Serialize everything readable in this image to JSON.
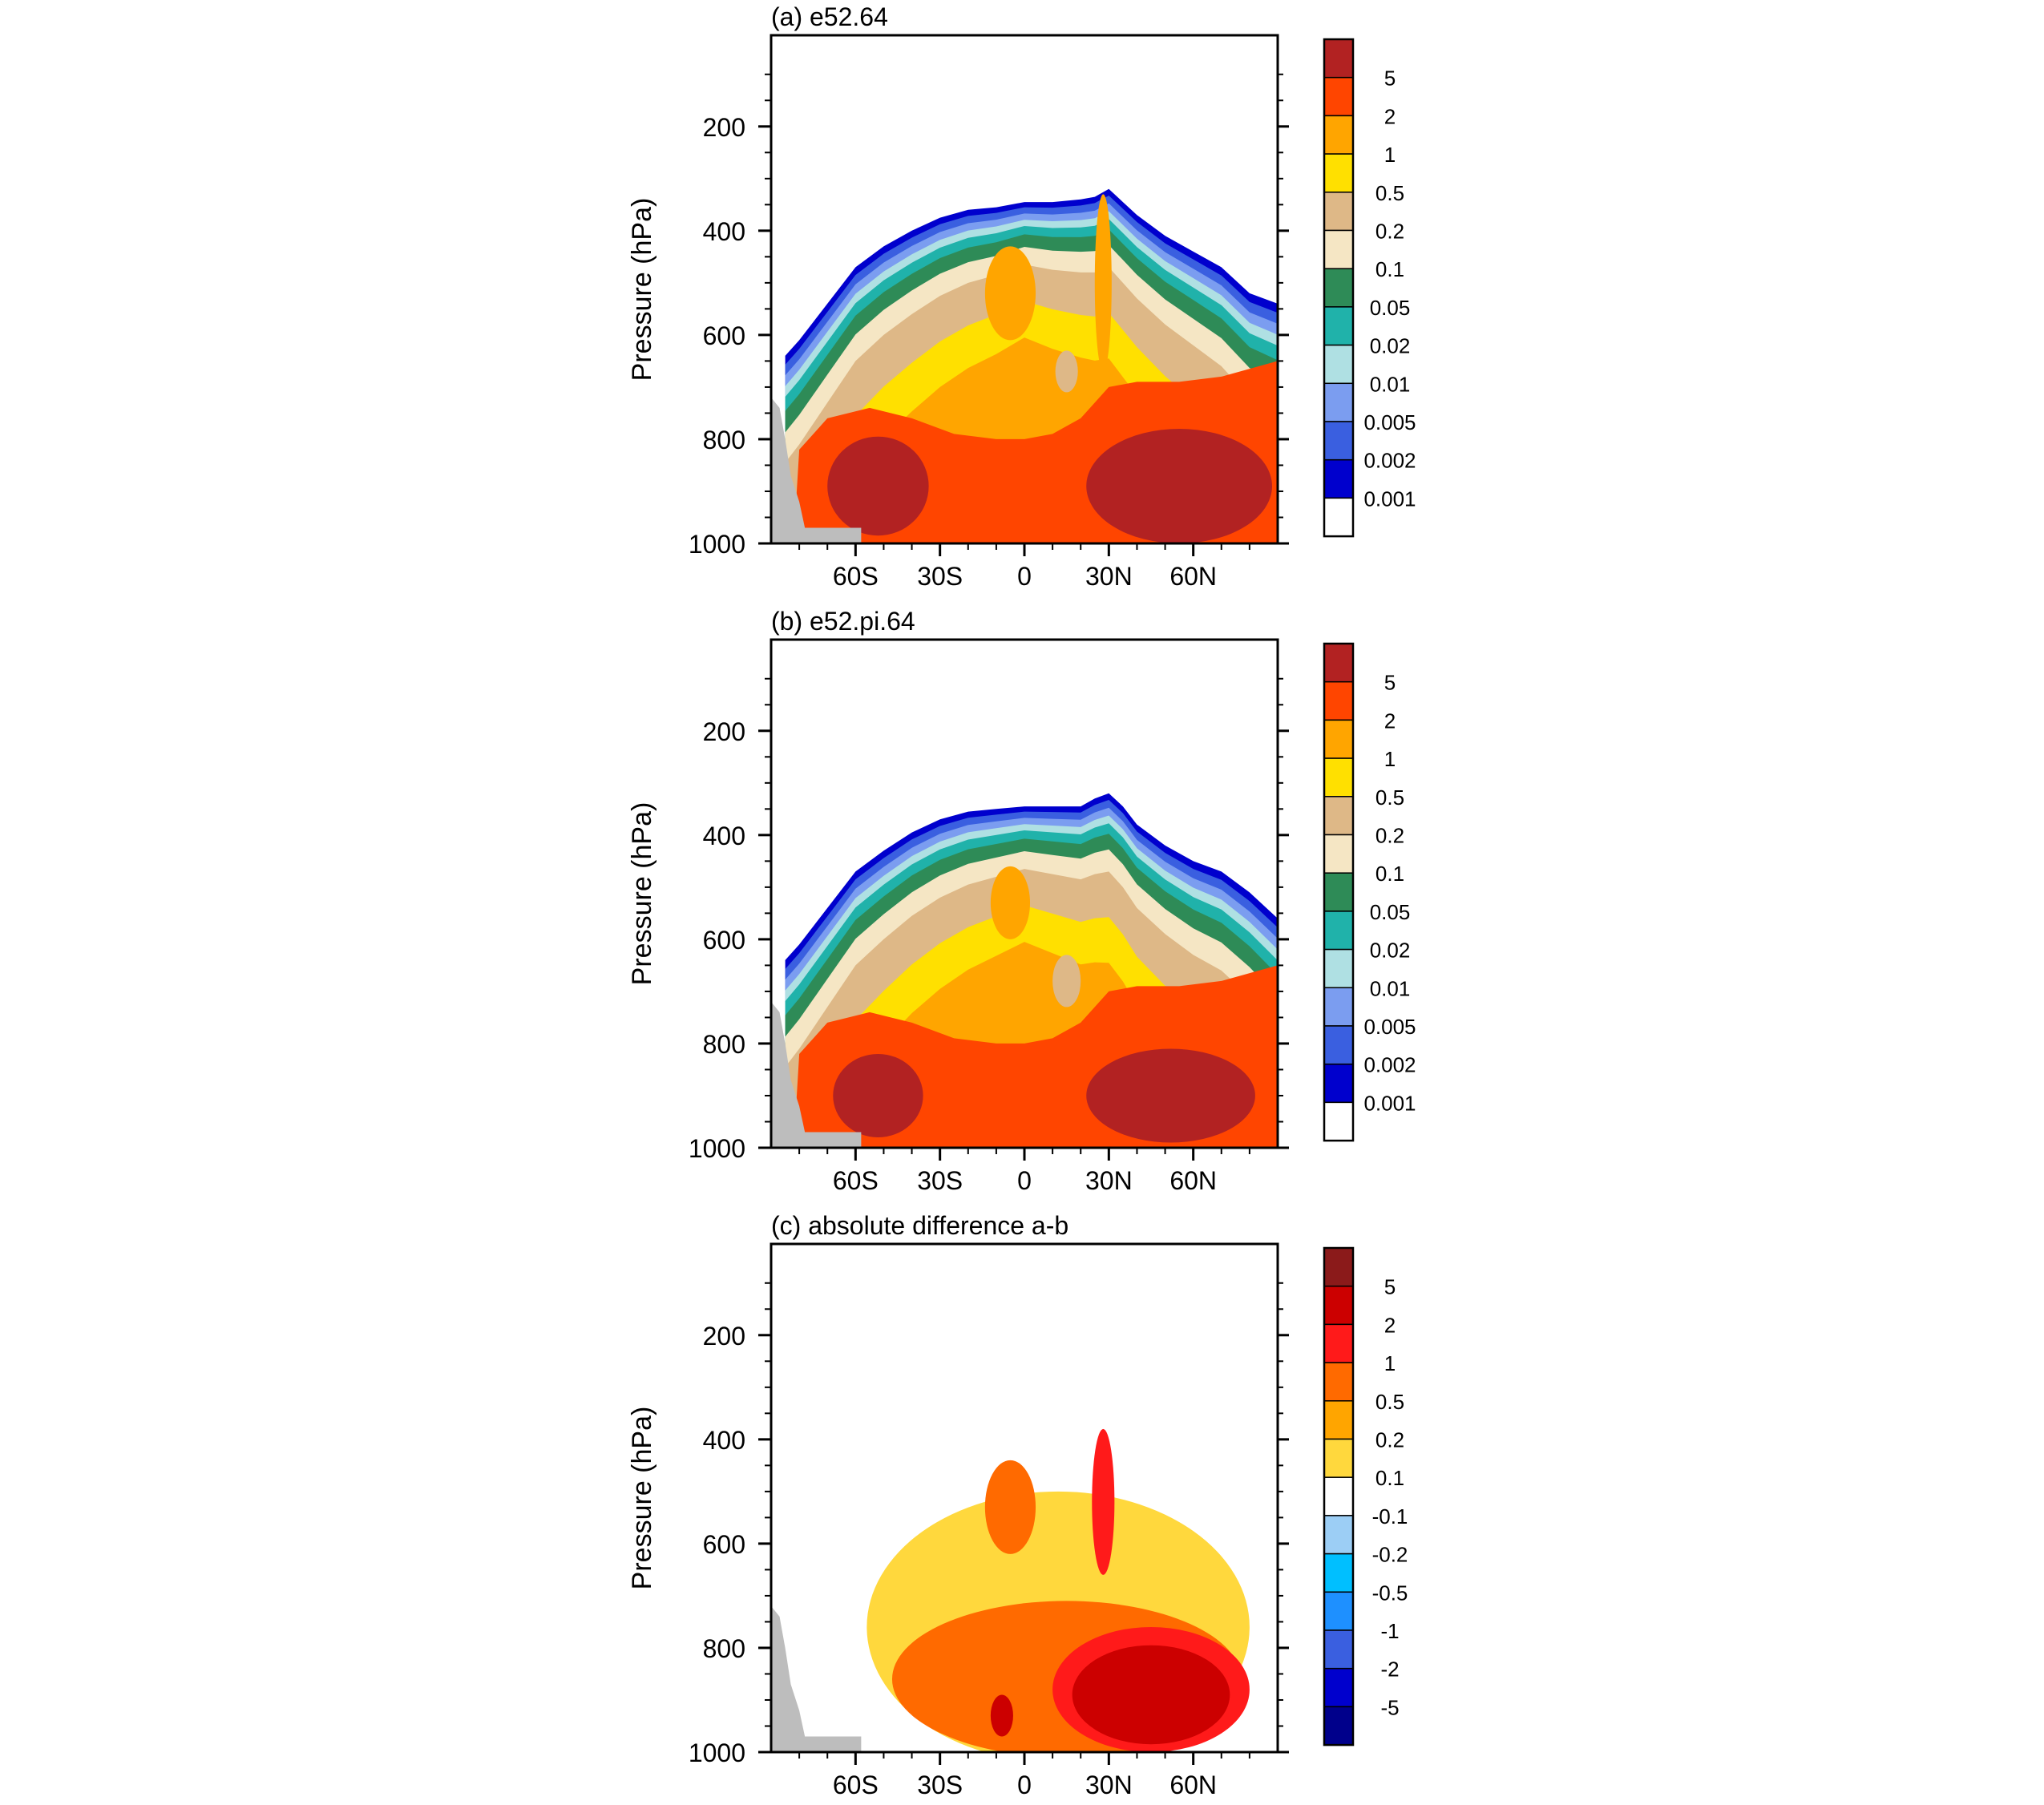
{
  "chart_data": [
    {
      "type": "heatmap",
      "title": "(a) e52.64",
      "ylabel": "Pressure (hPa)",
      "xlabel": "",
      "x_ticks": [
        "60S",
        "30S",
        "0",
        "30N",
        "60N"
      ],
      "x_tick_values": [
        -60,
        -30,
        0,
        30,
        60
      ],
      "x_range": [
        -90,
        90
      ],
      "y_ticks": [
        "200",
        "400",
        "600",
        "800",
        "1000"
      ],
      "y_tick_values": [
        200,
        400,
        600,
        800,
        1000
      ],
      "y_range": [
        1000,
        25
      ],
      "colorbar": {
        "labels": [
          "5",
          "2",
          "1",
          "0.5",
          "0.2",
          "0.1",
          "0.05",
          "0.02",
          "0.01",
          "0.005",
          "0.002",
          "0.001"
        ],
        "levels": [
          0.001,
          0.002,
          0.005,
          0.01,
          0.02,
          0.05,
          0.1,
          0.2,
          0.5,
          1,
          2,
          5
        ],
        "colors": [
          "#B22222",
          "#FF4500",
          "#FFA500",
          "#FFE000",
          "#DEB887",
          "#F5E6C4",
          "#2E8B57",
          "#20B2AA",
          "#AFE0E3",
          "#7B9DF0",
          "#3A5FE0",
          "#0000CD",
          "#FFFFFF"
        ]
      },
      "field": {
        "tropopause": [
          [
            -85,
            640
          ],
          [
            -80,
            610
          ],
          [
            -70,
            540
          ],
          [
            -60,
            470
          ],
          [
            -50,
            430
          ],
          [
            -40,
            400
          ],
          [
            -30,
            375
          ],
          [
            -20,
            360
          ],
          [
            -10,
            355
          ],
          [
            0,
            345
          ],
          [
            10,
            345
          ],
          [
            20,
            340
          ],
          [
            25,
            335
          ],
          [
            30,
            320
          ],
          [
            35,
            345
          ],
          [
            40,
            370
          ],
          [
            50,
            410
          ],
          [
            60,
            440
          ],
          [
            70,
            470
          ],
          [
            80,
            520
          ],
          [
            90,
            540
          ]
        ],
        "blobs": [
          {
            "x": -52,
            "p": 890,
            "rx": 18,
            "rp": 95,
            "level": 5
          },
          {
            "x": 55,
            "p": 890,
            "rx": 33,
            "rp": 110,
            "level": 5
          },
          {
            "x": -5,
            "p": 520,
            "rx": 9,
            "rp": 90,
            "level": 1
          },
          {
            "x": 28,
            "p": 500,
            "rx": 3,
            "rp": 170,
            "level": 1
          },
          {
            "x": 15,
            "p": 670,
            "rx": 4,
            "rp": 40,
            "level": 0.2
          }
        ]
      }
    },
    {
      "type": "heatmap",
      "title": "(b) e52.pi.64",
      "ylabel": "Pressure (hPa)",
      "xlabel": "",
      "x_ticks": [
        "60S",
        "30S",
        "0",
        "30N",
        "60N"
      ],
      "x_tick_values": [
        -60,
        -30,
        0,
        30,
        60
      ],
      "x_range": [
        -90,
        90
      ],
      "y_ticks": [
        "200",
        "400",
        "600",
        "800",
        "1000"
      ],
      "y_tick_values": [
        200,
        400,
        600,
        800,
        1000
      ],
      "y_range": [
        1000,
        25
      ],
      "colorbar": {
        "labels": [
          "5",
          "2",
          "1",
          "0.5",
          "0.2",
          "0.1",
          "0.05",
          "0.02",
          "0.01",
          "0.005",
          "0.002",
          "0.001"
        ],
        "levels": [
          0.001,
          0.002,
          0.005,
          0.01,
          0.02,
          0.05,
          0.1,
          0.2,
          0.5,
          1,
          2,
          5
        ],
        "colors": [
          "#B22222",
          "#FF4500",
          "#FFA500",
          "#FFE000",
          "#DEB887",
          "#F5E6C4",
          "#2E8B57",
          "#20B2AA",
          "#AFE0E3",
          "#7B9DF0",
          "#3A5FE0",
          "#0000CD",
          "#FFFFFF"
        ]
      },
      "field": {
        "tropopause": [
          [
            -85,
            640
          ],
          [
            -80,
            610
          ],
          [
            -70,
            540
          ],
          [
            -60,
            470
          ],
          [
            -50,
            430
          ],
          [
            -40,
            395
          ],
          [
            -30,
            370
          ],
          [
            -20,
            355
          ],
          [
            -10,
            350
          ],
          [
            0,
            345
          ],
          [
            10,
            345
          ],
          [
            20,
            345
          ],
          [
            25,
            330
          ],
          [
            30,
            320
          ],
          [
            35,
            345
          ],
          [
            40,
            380
          ],
          [
            50,
            420
          ],
          [
            60,
            450
          ],
          [
            70,
            470
          ],
          [
            80,
            510
          ],
          [
            90,
            560
          ]
        ],
        "blobs": [
          {
            "x": -52,
            "p": 900,
            "rx": 16,
            "rp": 80,
            "level": 5
          },
          {
            "x": 52,
            "p": 900,
            "rx": 30,
            "rp": 90,
            "level": 5
          },
          {
            "x": -5,
            "p": 530,
            "rx": 7,
            "rp": 70,
            "level": 1
          },
          {
            "x": 15,
            "p": 680,
            "rx": 5,
            "rp": 50,
            "level": 0.2
          }
        ]
      }
    },
    {
      "type": "heatmap",
      "title": "(c) absolute difference a-b",
      "ylabel": "Pressure (hPa)",
      "xlabel": "",
      "x_ticks": [
        "60S",
        "30S",
        "0",
        "30N",
        "60N"
      ],
      "x_tick_values": [
        -60,
        -30,
        0,
        30,
        60
      ],
      "x_range": [
        -90,
        90
      ],
      "y_ticks": [
        "200",
        "400",
        "600",
        "800",
        "1000"
      ],
      "y_tick_values": [
        200,
        400,
        600,
        800,
        1000
      ],
      "y_range": [
        1000,
        25
      ],
      "colorbar": {
        "labels": [
          "5",
          "2",
          "1",
          "0.5",
          "0.2",
          "0.1",
          "-0.1",
          "-0.2",
          "-0.5",
          "-1",
          "-2",
          "-5"
        ],
        "levels": [
          -5,
          -2,
          -1,
          -0.5,
          -0.2,
          -0.1,
          0.1,
          0.2,
          0.5,
          1,
          2,
          5
        ],
        "colors": [
          "#8B1A1A",
          "#CC0000",
          "#FF1A1A",
          "#FF6A00",
          "#FFA500",
          "#FFD83D",
          "#FFFFFF",
          "#9CCEF5",
          "#00BFFF",
          "#1E90FF",
          "#3A5FE0",
          "#0000CD",
          "#00008B"
        ]
      },
      "field": {
        "regions": [
          {
            "x": 12,
            "p": 760,
            "rx": 68,
            "rp": 260,
            "level": 0.1
          },
          {
            "x": 15,
            "p": 860,
            "rx": 62,
            "rp": 150,
            "level": 0.5
          },
          {
            "x": 45,
            "p": 880,
            "rx": 35,
            "rp": 120,
            "level": 1
          },
          {
            "x": 45,
            "p": 890,
            "rx": 28,
            "rp": 95,
            "level": 2
          },
          {
            "x": -5,
            "p": 530,
            "rx": 9,
            "rp": 90,
            "level": 0.5
          },
          {
            "x": 28,
            "p": 520,
            "rx": 4,
            "rp": 140,
            "level": 1
          },
          {
            "x": -8,
            "p": 930,
            "rx": 4,
            "rp": 40,
            "level": 2
          }
        ]
      }
    }
  ]
}
